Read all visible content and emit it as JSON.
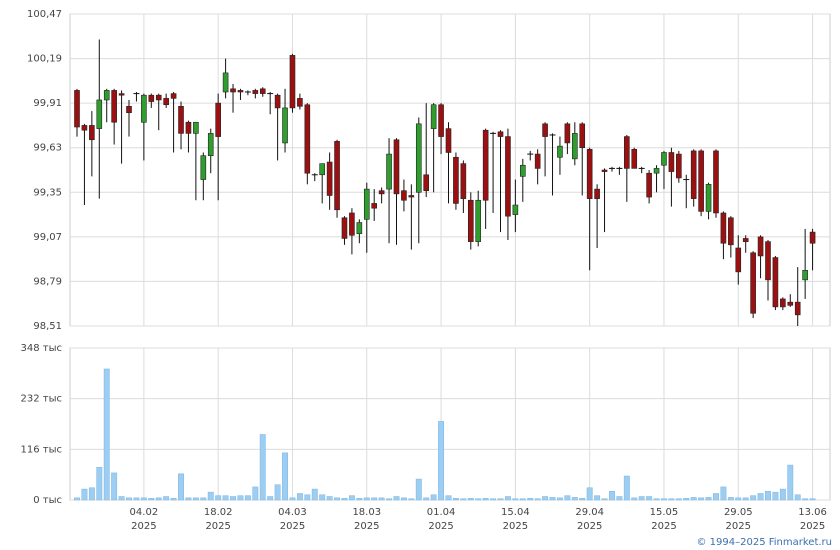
{
  "chart_data": {
    "type": "candlestick",
    "categories": [
      null,
      null,
      null,
      null,
      null,
      null,
      null,
      null,
      null,
      "04.02\n2025",
      null,
      null,
      null,
      null,
      null,
      null,
      null,
      null,
      null,
      "18.02\n2025",
      null,
      null,
      null,
      null,
      null,
      null,
      null,
      null,
      null,
      "04.03\n2025",
      null,
      null,
      null,
      null,
      null,
      null,
      null,
      null,
      null,
      "18.03\n2025",
      null,
      null,
      null,
      null,
      null,
      null,
      null,
      null,
      null,
      "01.04\n2025",
      null,
      null,
      null,
      null,
      null,
      null,
      null,
      null,
      null,
      "15.04\n2025",
      null,
      null,
      null,
      null,
      null,
      null,
      null,
      null,
      null,
      "29.04\n2025",
      null,
      null,
      null,
      null,
      null,
      null,
      null,
      null,
      null,
      "15.05\n2025",
      null,
      null,
      null,
      null,
      null,
      null,
      null,
      null,
      null,
      "29.05\n2025",
      null,
      null,
      null,
      null,
      null,
      null,
      null,
      null,
      null,
      "13.06\n2025"
    ],
    "open": [
      99.99,
      99.77,
      99.77,
      99.75,
      99.93,
      99.99,
      99.97,
      99.89,
      99.97,
      99.79,
      99.96,
      99.96,
      99.94,
      99.97,
      99.89,
      99.79,
      99.72,
      99.43,
      99.58,
      99.91,
      99.98,
      100.0,
      99.99,
      99.98,
      99.99,
      100.0,
      99.97,
      99.96,
      99.66,
      100.21,
      99.94,
      99.9,
      99.46,
      99.46,
      99.54,
      99.67,
      99.19,
      99.22,
      99.09,
      99.18,
      99.28,
      99.36,
      99.37,
      99.68,
      99.36,
      99.33,
      99.35,
      99.46,
      99.75,
      99.9,
      99.75,
      99.57,
      99.53,
      99.3,
      99.04,
      99.74,
      99.72,
      99.73,
      99.7,
      99.21,
      99.45,
      99.59,
      99.59,
      99.78,
      99.71,
      99.57,
      99.78,
      99.56,
      99.78,
      99.62,
      99.37,
      99.49,
      99.5,
      99.5,
      99.7,
      99.62,
      99.5,
      99.47,
      99.47,
      99.52,
      99.6,
      99.59,
      99.43,
      99.61,
      99.61,
      99.23,
      99.61,
      99.22,
      99.19,
      99.0,
      99.06,
      98.97,
      99.07,
      99.04,
      98.94,
      98.68,
      98.66,
      98.66,
      98.8,
      99.1
    ],
    "high": [
      100.0,
      99.78,
      99.86,
      100.31,
      100.0,
      100.0,
      99.99,
      99.93,
      99.98,
      99.97,
      99.97,
      99.97,
      99.97,
      99.98,
      99.92,
      99.8,
      99.79,
      99.6,
      99.75,
      99.97,
      100.19,
      100.03,
      100.0,
      99.99,
      100.0,
      100.01,
      99.98,
      99.97,
      100.0,
      100.22,
      99.97,
      99.91,
      99.47,
      99.52,
      99.6,
      99.68,
      99.2,
      99.25,
      99.18,
      99.41,
      99.37,
      99.38,
      99.69,
      99.69,
      99.43,
      99.4,
      99.82,
      99.91,
      99.91,
      99.91,
      99.79,
      99.6,
      99.55,
      99.35,
      99.36,
      99.75,
      99.73,
      99.74,
      99.75,
      99.43,
      99.56,
      99.61,
      99.62,
      99.79,
      99.72,
      99.7,
      99.79,
      99.79,
      99.79,
      99.63,
      99.4,
      99.5,
      99.51,
      99.51,
      99.71,
      99.63,
      99.51,
      99.49,
      99.52,
      99.61,
      99.63,
      99.61,
      99.46,
      99.62,
      99.62,
      99.41,
      99.62,
      99.23,
      99.2,
      99.08,
      99.08,
      98.98,
      99.08,
      99.05,
      98.95,
      98.69,
      98.71,
      98.88,
      99.12,
      99.12
    ],
    "low": [
      99.7,
      99.27,
      99.45,
      99.31,
      99.79,
      99.65,
      99.53,
      99.7,
      99.92,
      99.55,
      99.88,
      99.74,
      99.88,
      99.6,
      99.62,
      99.6,
      99.3,
      99.3,
      99.47,
      99.3,
      99.94,
      99.85,
      99.93,
      99.96,
      99.94,
      99.95,
      99.84,
      99.55,
      99.6,
      99.85,
      99.87,
      99.4,
      99.42,
      99.28,
      99.24,
      99.19,
      99.02,
      98.96,
      99.03,
      98.97,
      99.17,
      99.28,
      99.03,
      99.02,
      99.23,
      98.99,
      99.03,
      99.32,
      99.35,
      99.59,
      99.28,
      99.24,
      99.22,
      98.99,
      99.01,
      99.12,
      99.22,
      99.1,
      99.05,
      99.1,
      99.29,
      99.55,
      99.4,
      99.45,
      99.33,
      99.46,
      99.59,
      99.52,
      99.33,
      98.86,
      99.0,
      99.1,
      99.48,
      99.46,
      99.29,
      99.5,
      99.47,
      99.28,
      99.35,
      99.37,
      99.26,
      99.41,
      99.25,
      99.26,
      99.2,
      99.18,
      99.19,
      98.93,
      98.94,
      98.77,
      98.97,
      98.56,
      98.81,
      98.67,
      98.61,
      98.61,
      98.63,
      98.51,
      98.68,
      98.86
    ],
    "close": [
      99.76,
      99.74,
      99.68,
      99.93,
      99.99,
      99.79,
      99.96,
      99.85,
      99.97,
      99.96,
      99.92,
      99.93,
      99.9,
      99.94,
      99.72,
      99.72,
      99.79,
      99.58,
      99.72,
      99.7,
      100.1,
      99.98,
      99.98,
      99.98,
      99.97,
      99.97,
      99.97,
      99.88,
      99.88,
      99.88,
      99.89,
      99.47,
      99.46,
      99.53,
      99.33,
      99.24,
      99.06,
      99.08,
      99.16,
      99.37,
      99.25,
      99.34,
      99.59,
      99.34,
      99.3,
      99.32,
      99.78,
      99.36,
      99.9,
      99.7,
      99.6,
      99.28,
      99.31,
      99.04,
      99.3,
      99.3,
      99.72,
      99.7,
      99.2,
      99.27,
      99.52,
      99.59,
      99.5,
      99.7,
      99.71,
      99.64,
      99.66,
      99.72,
      99.63,
      99.31,
      99.31,
      99.48,
      99.5,
      99.5,
      99.5,
      99.5,
      99.5,
      99.32,
      99.5,
      99.6,
      99.48,
      99.44,
      99.43,
      99.31,
      99.23,
      99.4,
      99.22,
      99.03,
      99.02,
      98.85,
      99.04,
      98.59,
      98.95,
      98.8,
      98.63,
      98.63,
      98.64,
      98.58,
      98.86,
      99.03
    ],
    "up_color": "#2f9e2f",
    "down_color": "#9b1111",
    "ylim": [
      98.51,
      100.47
    ],
    "yticks": [
      {
        "value": 98.51,
        "label": "98,51"
      },
      {
        "value": 98.79,
        "label": "98,79"
      },
      {
        "value": 99.07,
        "label": "99,07"
      },
      {
        "value": 99.35,
        "label": "99,35"
      },
      {
        "value": 99.63,
        "label": "99,63"
      },
      {
        "value": 99.91,
        "label": "99,91"
      },
      {
        "value": 100.19,
        "label": "100,19"
      },
      {
        "value": 100.47,
        "label": "100,47"
      }
    ],
    "grid": true,
    "volume": {
      "type": "bar",
      "color": "#9ccdf2",
      "values": [
        5,
        25,
        28,
        75,
        300,
        62,
        8,
        5,
        5,
        5,
        4,
        5,
        8,
        4,
        60,
        5,
        5,
        5,
        18,
        10,
        10,
        8,
        10,
        10,
        30,
        150,
        8,
        35,
        108,
        5,
        15,
        12,
        25,
        12,
        8,
        5,
        4,
        10,
        4,
        5,
        5,
        5,
        3,
        8,
        5,
        3,
        48,
        5,
        12,
        180,
        10,
        4,
        3,
        4,
        3,
        4,
        3,
        3,
        8,
        3,
        3,
        4,
        3,
        8,
        6,
        5,
        10,
        6,
        4,
        28,
        10,
        3,
        20,
        8,
        55,
        5,
        8,
        8,
        3,
        3,
        3,
        3,
        4,
        6,
        5,
        6,
        15,
        30,
        6,
        5,
        5,
        10,
        15,
        20,
        18,
        25,
        80,
        12,
        3,
        3
      ],
      "ylim": [
        0,
        348
      ],
      "yticks": [
        {
          "value": 0,
          "label": "0 тыс"
        },
        {
          "value": 116,
          "label": "116 тыс"
        },
        {
          "value": 232,
          "label": "232 тыс"
        },
        {
          "value": 348,
          "label": "348 тыс"
        }
      ]
    },
    "credit": "© 1994–2025 Finmarket.ru"
  }
}
